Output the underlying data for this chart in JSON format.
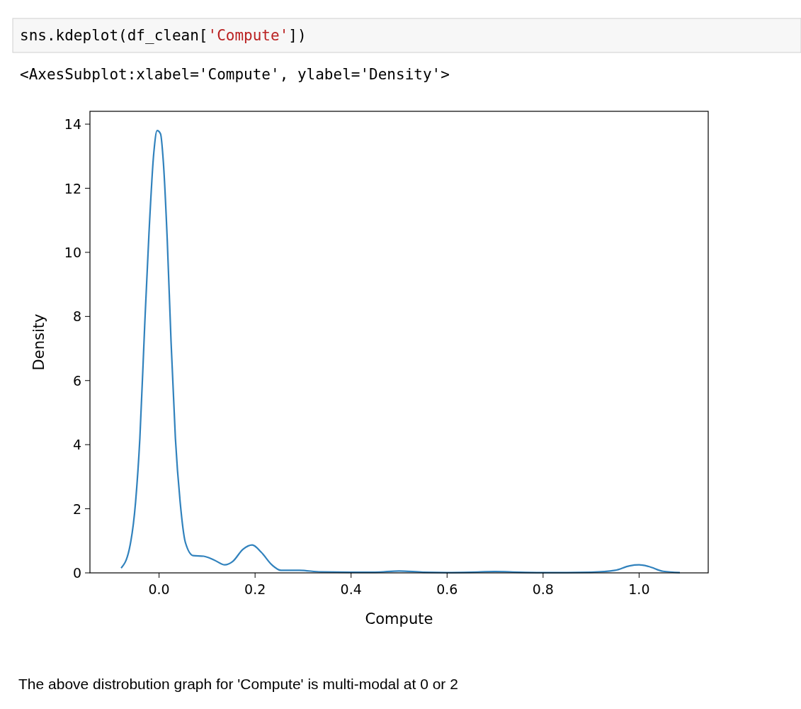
{
  "chart_data": {
    "type": "line",
    "xlabel": "Compute",
    "ylabel": "Density",
    "annotations": [
      "sns.kdeplot(df_clean['Compute'])",
      "<AxesSubplot:xlabel='Compute', ylabel='Density'>",
      "The above distrobution graph for 'Compute' is multi-modal at 0 or 2"
    ],
    "xlim": [
      -0.144,
      1.144
    ],
    "xticks": [
      {
        "value": 0,
        "label": "0.0"
      },
      {
        "value": 0.2,
        "label": "0.2"
      },
      {
        "value": 0.4,
        "label": "0.4"
      },
      {
        "value": 0.6,
        "label": "0.6"
      },
      {
        "value": 0.8,
        "label": "0.8"
      },
      {
        "value": 1,
        "label": "1.0"
      }
    ],
    "ylim": [
      0,
      14.4
    ],
    "yticks": [
      0,
      2,
      4,
      6,
      8,
      10,
      12,
      14
    ],
    "grid": false,
    "series": [
      {
        "color": "#3182bd",
        "x": [
          -0.079,
          -0.062,
          -0.049,
          -0.04,
          -0.03,
          -0.021,
          -0.011,
          -0.004,
          0.003,
          0.009,
          0.017,
          0.025,
          0.034,
          0.044,
          0.055,
          0.071,
          0.093,
          0.115,
          0.137,
          0.153,
          0.175,
          0.194,
          0.213,
          0.235,
          0.254,
          0.292,
          0.337,
          0.4,
          0.45,
          0.5,
          0.55,
          0.6,
          0.65,
          0.7,
          0.75,
          0.8,
          0.85,
          0.9,
          0.95,
          0.98,
          1.0,
          1.02,
          1.05,
          1.085
        ],
        "values": [
          0.15,
          0.74,
          2.2,
          4.2,
          7.7,
          10.6,
          13.1,
          13.8,
          13.7,
          12.8,
          10.4,
          7.2,
          4.2,
          2.2,
          0.94,
          0.54,
          0.52,
          0.4,
          0.25,
          0.35,
          0.74,
          0.87,
          0.64,
          0.25,
          0.08,
          0.08,
          0.03,
          0.02,
          0.02,
          0.06,
          0.02,
          0.01,
          0.02,
          0.04,
          0.02,
          0.01,
          0.01,
          0.02,
          0.08,
          0.22,
          0.25,
          0.2,
          0.05,
          0.01
        ]
      }
    ]
  }
}
